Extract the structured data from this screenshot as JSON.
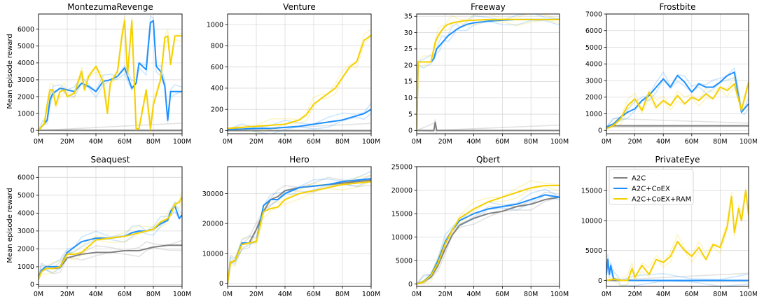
{
  "figure": {
    "ylabel": "Mean episode reward",
    "legend": [
      {
        "name": "A2C",
        "color": "#808080"
      },
      {
        "name": "A2C+CoEX",
        "color": "#1e90ff"
      },
      {
        "name": "A2C+CoEX+RAM",
        "color": "#f5d000"
      }
    ]
  },
  "chart_data": [
    {
      "type": "line",
      "title": "MontezumaRevenge",
      "xlim": [
        0,
        100
      ],
      "ylim": [
        -200,
        6900
      ],
      "xticks": [
        "0M",
        "20M",
        "40M",
        "60M",
        "80M",
        "100M"
      ],
      "yticks": [
        0,
        1000,
        2000,
        3000,
        4000,
        5000,
        6000
      ],
      "series": [
        {
          "name": "A2C",
          "x": [
            0,
            100
          ],
          "y": [
            0,
            0
          ]
        },
        {
          "name": "A2C+CoEX",
          "x": [
            0,
            3,
            6,
            8,
            10,
            15,
            20,
            25,
            30,
            35,
            40,
            45,
            50,
            55,
            60,
            65,
            68,
            70,
            75,
            78,
            80,
            82,
            85,
            88,
            90,
            92,
            95,
            100
          ],
          "y": [
            0,
            300,
            600,
            1800,
            2200,
            2500,
            2400,
            2300,
            2800,
            2600,
            2300,
            2900,
            3000,
            3200,
            3700,
            2500,
            2800,
            4000,
            3600,
            6400,
            6500,
            3800,
            3500,
            2600,
            600,
            2300,
            2300,
            2300
          ]
        },
        {
          "name": "A2C+CoEX+RAM",
          "x": [
            0,
            4,
            6,
            8,
            10,
            12,
            15,
            18,
            20,
            25,
            30,
            32,
            35,
            40,
            45,
            48,
            50,
            55,
            58,
            60,
            62,
            65,
            68,
            70,
            75,
            78,
            80,
            85,
            88,
            90,
            92,
            95,
            100
          ],
          "y": [
            0,
            400,
            1500,
            2400,
            2400,
            1500,
            2300,
            2400,
            2000,
            2200,
            3500,
            2400,
            3200,
            3800,
            2900,
            1000,
            2800,
            3500,
            5500,
            6500,
            3300,
            6500,
            100,
            100,
            2400,
            100,
            1500,
            3000,
            5500,
            5600,
            3900,
            5600,
            5600
          ]
        }
      ]
    },
    {
      "type": "line",
      "title": "Venture",
      "xlim": [
        0,
        100
      ],
      "ylim": [
        -30,
        1100
      ],
      "xticks": [
        "0M",
        "20M",
        "40M",
        "60M",
        "80M",
        "100M"
      ],
      "yticks": [
        0,
        200,
        400,
        600,
        800,
        1000
      ],
      "series": [
        {
          "name": "A2C",
          "x": [
            0,
            100
          ],
          "y": [
            0,
            0
          ]
        },
        {
          "name": "A2C+CoEX",
          "x": [
            0,
            10,
            20,
            30,
            40,
            50,
            60,
            70,
            80,
            90,
            95,
            100
          ],
          "y": [
            10,
            15,
            20,
            20,
            30,
            40,
            60,
            80,
            100,
            140,
            160,
            200
          ]
        },
        {
          "name": "A2C+CoEX+RAM",
          "x": [
            0,
            10,
            20,
            30,
            40,
            50,
            55,
            60,
            65,
            70,
            75,
            80,
            85,
            90,
            95,
            100
          ],
          "y": [
            20,
            30,
            40,
            50,
            60,
            100,
            150,
            250,
            300,
            350,
            400,
            500,
            600,
            650,
            850,
            900
          ]
        }
      ]
    },
    {
      "type": "line",
      "title": "Freeway",
      "xlim": [
        0,
        100
      ],
      "ylim": [
        -1,
        35.7
      ],
      "xticks": [
        "0M",
        "20M",
        "40M",
        "60M",
        "80M",
        "100M"
      ],
      "yticks": [
        0,
        5,
        10,
        15,
        20,
        25,
        30,
        35
      ],
      "series": [
        {
          "name": "A2C",
          "x": [
            0,
            12,
            13,
            14,
            100
          ],
          "y": [
            0,
            0,
            2.5,
            0,
            0
          ]
        },
        {
          "name": "A2C+CoEX",
          "x": [
            0,
            0.5,
            1,
            5,
            10,
            12,
            14,
            16,
            18,
            20,
            22,
            25,
            28,
            30,
            35,
            40,
            50,
            60,
            70,
            80,
            90,
            100
          ],
          "y": [
            0,
            10,
            21,
            21,
            21,
            22,
            25,
            26,
            27,
            28,
            29,
            30,
            31,
            31.5,
            32.5,
            33,
            33.5,
            33.8,
            34,
            34,
            34,
            34
          ]
        },
        {
          "name": "A2C+CoEX+RAM",
          "x": [
            0,
            0.5,
            1,
            5,
            10,
            11,
            13,
            15,
            18,
            20,
            22,
            25,
            30,
            35,
            40,
            50,
            60,
            70,
            80,
            90,
            100
          ],
          "y": [
            0,
            10,
            21,
            21,
            21,
            23,
            27,
            29,
            31,
            32,
            32.5,
            33,
            33.4,
            33.7,
            33.8,
            34,
            34,
            34,
            34,
            34,
            34
          ]
        }
      ]
    },
    {
      "type": "line",
      "title": "Frostbite",
      "xlim": [
        0,
        100
      ],
      "ylim": [
        -200,
        7000
      ],
      "xticks": [
        "0M",
        "20M",
        "40M",
        "60M",
        "80M",
        "100M"
      ],
      "yticks": [
        0,
        1000,
        2000,
        3000,
        4000,
        5000,
        6000,
        7000
      ],
      "series": [
        {
          "name": "A2C",
          "x": [
            0,
            5,
            100
          ],
          "y": [
            200,
            280,
            280
          ]
        },
        {
          "name": "A2C+CoEX",
          "x": [
            0,
            5,
            10,
            15,
            20,
            25,
            30,
            35,
            40,
            45,
            50,
            55,
            60,
            65,
            70,
            75,
            80,
            85,
            90,
            93,
            95,
            97,
            100
          ],
          "y": [
            200,
            400,
            800,
            1100,
            1300,
            1800,
            2100,
            2600,
            3100,
            2600,
            3300,
            2900,
            2300,
            2800,
            2600,
            2600,
            2900,
            3300,
            3500,
            2000,
            1100,
            1300,
            1600
          ]
        },
        {
          "name": "A2C+CoEX+RAM",
          "x": [
            0,
            5,
            10,
            15,
            20,
            25,
            30,
            35,
            40,
            45,
            50,
            55,
            60,
            65,
            70,
            75,
            80,
            85,
            90,
            95,
            100
          ],
          "y": [
            100,
            300,
            700,
            1500,
            1900,
            1200,
            2300,
            1400,
            1800,
            1500,
            2100,
            1600,
            2000,
            1800,
            2200,
            1900,
            2600,
            2400,
            2800,
            1200,
            2900
          ]
        }
      ]
    },
    {
      "type": "line",
      "title": "Seaquest",
      "xlim": [
        0,
        100
      ],
      "ylim": [
        -100,
        6600
      ],
      "xticks": [
        "0M",
        "20M",
        "40M",
        "60M",
        "80M",
        "100M"
      ],
      "yticks": [
        0,
        1000,
        2000,
        3000,
        4000,
        5000,
        6000
      ],
      "series": [
        {
          "name": "A2C",
          "x": [
            0,
            2,
            5,
            10,
            15,
            20,
            25,
            30,
            40,
            50,
            60,
            70,
            75,
            80,
            90,
            100
          ],
          "y": [
            400,
            800,
            900,
            900,
            950,
            1500,
            1600,
            1700,
            1800,
            1800,
            1900,
            1900,
            2000,
            2100,
            2200,
            2200
          ]
        },
        {
          "name": "A2C+CoEX",
          "x": [
            0,
            2,
            5,
            10,
            15,
            20,
            25,
            30,
            40,
            50,
            60,
            65,
            70,
            75,
            80,
            85,
            90,
            92,
            95,
            98,
            100
          ],
          "y": [
            300,
            800,
            1000,
            1000,
            1000,
            1800,
            2100,
            2400,
            2600,
            2600,
            2700,
            2900,
            3000,
            3000,
            3100,
            3400,
            3600,
            4100,
            4400,
            3700,
            3900
          ]
        },
        {
          "name": "A2C+CoEX+RAM",
          "x": [
            0,
            2,
            5,
            10,
            15,
            20,
            25,
            30,
            40,
            50,
            60,
            70,
            80,
            85,
            90,
            92,
            95,
            98,
            100
          ],
          "y": [
            300,
            700,
            900,
            900,
            1000,
            1700,
            1700,
            1800,
            2500,
            2600,
            2700,
            2900,
            3100,
            3500,
            3700,
            3900,
            4500,
            4600,
            4900
          ]
        }
      ]
    },
    {
      "type": "line",
      "title": "Hero",
      "xlim": [
        0,
        100
      ],
      "ylim": [
        -1000,
        39000
      ],
      "xticks": [
        "0M",
        "20M",
        "40M",
        "60M",
        "80M",
        "100M"
      ],
      "yticks": [
        0,
        10000,
        20000,
        30000
      ],
      "series": [
        {
          "name": "A2C",
          "x": [
            0,
            2,
            5,
            10,
            15,
            20,
            25,
            30,
            35,
            40,
            50,
            60,
            70,
            80,
            90,
            100
          ],
          "y": [
            0,
            7000,
            7500,
            13000,
            13500,
            18000,
            24000,
            28000,
            29000,
            31000,
            32000,
            32500,
            33000,
            33500,
            34000,
            34500
          ]
        },
        {
          "name": "A2C+CoEX",
          "x": [
            0,
            2,
            5,
            10,
            15,
            20,
            25,
            30,
            35,
            40,
            50,
            60,
            70,
            80,
            90,
            100
          ],
          "y": [
            0,
            7000,
            7500,
            13500,
            13500,
            14000,
            26000,
            28000,
            28000,
            30000,
            32000,
            32500,
            33000,
            34000,
            34500,
            35000
          ]
        },
        {
          "name": "A2C+CoEX+RAM",
          "x": [
            0,
            2,
            5,
            10,
            15,
            20,
            25,
            30,
            35,
            40,
            50,
            60,
            70,
            80,
            90,
            100
          ],
          "y": [
            0,
            7000,
            7500,
            13000,
            13500,
            14000,
            24000,
            25000,
            25500,
            28000,
            30000,
            31000,
            32000,
            33000,
            33500,
            34000
          ]
        }
      ]
    },
    {
      "type": "line",
      "title": "Qbert",
      "xlim": [
        0,
        100
      ],
      "ylim": [
        -500,
        25000
      ],
      "xticks": [
        "0M",
        "20M",
        "40M",
        "60M",
        "80M",
        "100M"
      ],
      "yticks": [
        0,
        5000,
        10000,
        15000,
        20000,
        25000
      ],
      "series": [
        {
          "name": "A2C",
          "x": [
            0,
            5,
            10,
            15,
            20,
            25,
            30,
            40,
            50,
            60,
            70,
            80,
            90,
            100
          ],
          "y": [
            0,
            500,
            1500,
            4000,
            7500,
            10500,
            12500,
            14000,
            15000,
            15500,
            16500,
            17000,
            18000,
            18500
          ]
        },
        {
          "name": "A2C+CoEX",
          "x": [
            0,
            5,
            10,
            15,
            20,
            25,
            30,
            40,
            50,
            60,
            70,
            80,
            90,
            100
          ],
          "y": [
            0,
            600,
            2000,
            5000,
            9000,
            11500,
            13500,
            15000,
            16000,
            16500,
            17000,
            18000,
            19000,
            18500
          ]
        },
        {
          "name": "A2C+CoEX+RAM",
          "x": [
            0,
            5,
            10,
            15,
            20,
            25,
            30,
            40,
            50,
            60,
            70,
            80,
            90,
            100
          ],
          "y": [
            0,
            500,
            1800,
            4500,
            8500,
            11500,
            14000,
            16000,
            17500,
            18500,
            19500,
            20500,
            21000,
            21000
          ]
        }
      ]
    },
    {
      "type": "line",
      "title": "PrivateEye",
      "xlim": [
        0,
        100
      ],
      "ylim": [
        -1000,
        19000
      ],
      "xticks": [
        "0M",
        "20M",
        "40M",
        "60M",
        "80M",
        "100M"
      ],
      "yticks": [
        0,
        5000,
        10000,
        15000
      ],
      "legend_position": "upper-left",
      "series": [
        {
          "name": "A2C",
          "x": [
            0,
            100
          ],
          "y": [
            0,
            0
          ]
        },
        {
          "name": "A2C+CoEX",
          "x": [
            0,
            1,
            2,
            3,
            5,
            8,
            10,
            20,
            40,
            60,
            80,
            100
          ],
          "y": [
            1000,
            3500,
            1000,
            2500,
            300,
            100,
            0,
            0,
            0,
            0,
            0,
            0
          ]
        },
        {
          "name": "A2C+CoEX+RAM",
          "x": [
            0,
            5,
            10,
            15,
            18,
            20,
            25,
            30,
            35,
            40,
            45,
            50,
            55,
            60,
            65,
            70,
            75,
            80,
            85,
            88,
            90,
            93,
            95,
            98,
            100
          ],
          "y": [
            0,
            200,
            0,
            0,
            2000,
            500,
            2500,
            1000,
            3500,
            3000,
            4000,
            6500,
            5000,
            4000,
            5500,
            3500,
            6000,
            5500,
            9000,
            14000,
            8000,
            12000,
            10000,
            15000,
            11000
          ]
        }
      ]
    }
  ]
}
